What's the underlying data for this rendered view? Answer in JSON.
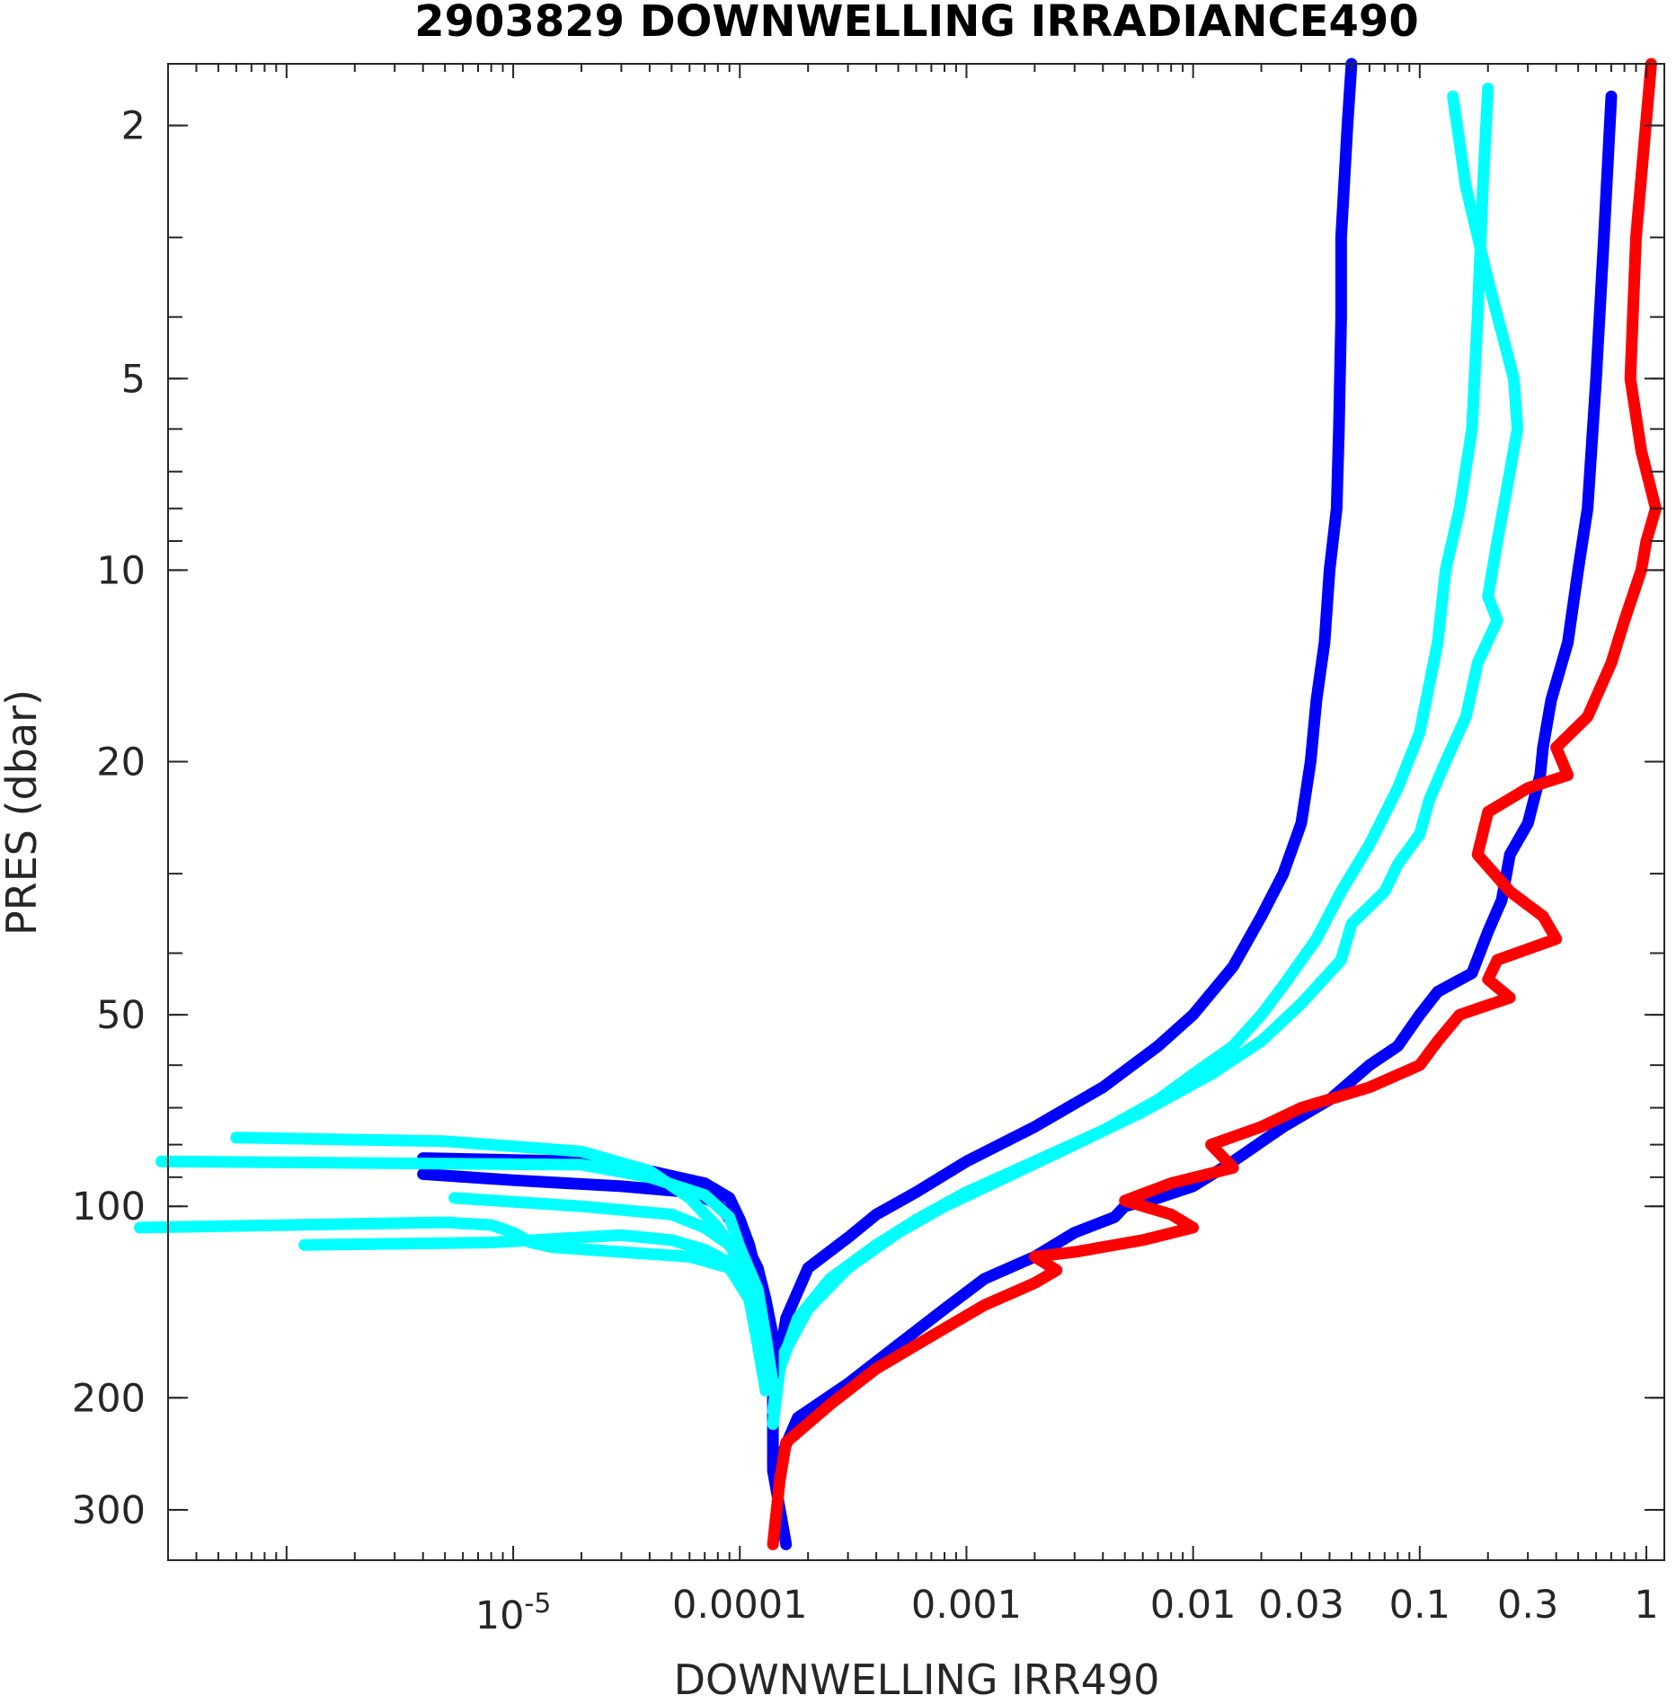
{
  "chart_data": {
    "type": "line",
    "title": "2903829  DOWNWELLING IRRADIANCE490",
    "xlabel": "DOWNWELLING IRR490",
    "ylabel": "PRES (dbar)",
    "xscale": "log",
    "yscale": "log",
    "yreversed": true,
    "xlim": [
      3e-07,
      1.2
    ],
    "ylim": [
      1.6,
      360
    ],
    "grid": false,
    "legend": "none",
    "xticks": [
      {
        "value": 1e-05,
        "label": "10",
        "sup": "-5"
      },
      {
        "value": 0.0001,
        "label": "0.0001"
      },
      {
        "value": 0.001,
        "label": "0.001"
      },
      {
        "value": 0.01,
        "label": "0.01"
      },
      {
        "value": 0.03,
        "label": "0.03"
      },
      {
        "value": 0.1,
        "label": "0.1"
      },
      {
        "value": 0.3,
        "label": "0.3"
      },
      {
        "value": 1,
        "label": "1"
      }
    ],
    "yticks": [
      {
        "value": 2,
        "label": "2"
      },
      {
        "value": 5,
        "label": "5"
      },
      {
        "value": 10,
        "label": "10"
      },
      {
        "value": 20,
        "label": "20"
      },
      {
        "value": 50,
        "label": "50"
      },
      {
        "value": 100,
        "label": "100"
      },
      {
        "value": 200,
        "label": "200"
      },
      {
        "value": 300,
        "label": "300"
      }
    ],
    "series": [
      {
        "color": "#0000ff",
        "points": [
          [
            0.05,
            1.6
          ],
          [
            0.048,
            2
          ],
          [
            0.045,
            3
          ],
          [
            0.045,
            4
          ],
          [
            0.044,
            6
          ],
          [
            0.043,
            8
          ],
          [
            0.04,
            10
          ],
          [
            0.038,
            13
          ],
          [
            0.035,
            16
          ],
          [
            0.033,
            20
          ],
          [
            0.03,
            25
          ],
          [
            0.025,
            30
          ],
          [
            0.02,
            35
          ],
          [
            0.015,
            42
          ],
          [
            0.01,
            50
          ],
          [
            0.007,
            56
          ],
          [
            0.004,
            65
          ],
          [
            0.002,
            75
          ],
          [
            0.001,
            85
          ],
          [
            0.0006,
            95
          ],
          [
            0.0004,
            103
          ],
          [
            0.0003,
            112
          ],
          [
            0.0002,
            125
          ],
          [
            0.00016,
            150
          ],
          [
            0.00014,
            200
          ],
          [
            0.00014,
            260
          ],
          [
            0.00016,
            340
          ]
        ]
      },
      {
        "color": "#0000ff",
        "points": [
          [
            0.7,
            1.8
          ],
          [
            0.65,
            3
          ],
          [
            0.6,
            5
          ],
          [
            0.55,
            8
          ],
          [
            0.5,
            10
          ],
          [
            0.45,
            13
          ],
          [
            0.38,
            16
          ],
          [
            0.35,
            19
          ],
          [
            0.34,
            21
          ],
          [
            0.3,
            25
          ],
          [
            0.25,
            28
          ],
          [
            0.23,
            33
          ],
          [
            0.2,
            37
          ],
          [
            0.17,
            43
          ],
          [
            0.12,
            46
          ],
          [
            0.1,
            50
          ],
          [
            0.08,
            56
          ],
          [
            0.06,
            60
          ],
          [
            0.04,
            68
          ],
          [
            0.025,
            75
          ],
          [
            0.015,
            85
          ],
          [
            0.01,
            93
          ],
          [
            0.007,
            97
          ],
          [
            0.005,
            100
          ],
          [
            0.0045,
            104
          ],
          [
            0.003,
            110
          ],
          [
            0.002,
            120
          ],
          [
            0.0012,
            130
          ],
          [
            0.0008,
            145
          ],
          [
            0.0005,
            165
          ],
          [
            0.0003,
            190
          ],
          [
            0.00018,
            215
          ],
          [
            0.00015,
            250
          ]
        ]
      },
      {
        "color": "#00ffff",
        "points": [
          [
            0.2,
            1.75
          ],
          [
            0.19,
            2.5
          ],
          [
            0.18,
            4
          ],
          [
            0.17,
            6
          ],
          [
            0.15,
            8
          ],
          [
            0.13,
            10
          ],
          [
            0.12,
            13
          ],
          [
            0.1,
            18
          ],
          [
            0.08,
            22
          ],
          [
            0.06,
            27
          ],
          [
            0.045,
            32
          ],
          [
            0.035,
            38
          ],
          [
            0.025,
            45
          ],
          [
            0.02,
            50
          ],
          [
            0.015,
            56
          ],
          [
            0.01,
            62
          ],
          [
            0.007,
            68
          ],
          [
            0.004,
            76
          ],
          [
            0.002,
            85
          ],
          [
            0.001,
            95
          ],
          [
            0.0006,
            105
          ],
          [
            0.0004,
            115
          ],
          [
            0.00025,
            130
          ],
          [
            0.00018,
            150
          ],
          [
            0.00015,
            180
          ],
          [
            0.00014,
            220
          ]
        ]
      },
      {
        "color": "#00ffff",
        "points": [
          [
            0.14,
            1.8
          ],
          [
            0.16,
            2.5
          ],
          [
            0.2,
            3.5
          ],
          [
            0.26,
            5
          ],
          [
            0.27,
            6
          ],
          [
            0.25,
            7
          ],
          [
            0.22,
            9
          ],
          [
            0.2,
            11
          ],
          [
            0.22,
            12
          ],
          [
            0.18,
            14
          ],
          [
            0.16,
            17
          ],
          [
            0.13,
            20
          ],
          [
            0.11,
            23
          ],
          [
            0.1,
            26
          ],
          [
            0.08,
            29
          ],
          [
            0.07,
            32
          ],
          [
            0.05,
            36
          ],
          [
            0.045,
            41
          ],
          [
            0.03,
            48
          ],
          [
            0.02,
            55
          ],
          [
            0.012,
            62
          ],
          [
            0.006,
            71
          ],
          [
            0.003,
            80
          ],
          [
            0.0015,
            90
          ],
          [
            0.0008,
            100
          ],
          [
            0.0005,
            110
          ],
          [
            0.0003,
            125
          ],
          [
            0.0002,
            145
          ],
          [
            0.00015,
            175
          ],
          [
            0.00014,
            210
          ]
        ]
      },
      {
        "color": "#ff0000",
        "points": [
          [
            1.05,
            1.6
          ],
          [
            0.9,
            3
          ],
          [
            0.85,
            5
          ],
          [
            0.95,
            6.5
          ],
          [
            1.1,
            8
          ],
          [
            1.0,
            9
          ],
          [
            0.95,
            10
          ],
          [
            0.8,
            12
          ],
          [
            0.7,
            14
          ],
          [
            0.55,
            17
          ],
          [
            0.4,
            19
          ],
          [
            0.45,
            21
          ],
          [
            0.3,
            22
          ],
          [
            0.2,
            24
          ],
          [
            0.18,
            28
          ],
          [
            0.25,
            32
          ],
          [
            0.35,
            35
          ],
          [
            0.4,
            38
          ],
          [
            0.22,
            41
          ],
          [
            0.2,
            44
          ],
          [
            0.25,
            47
          ],
          [
            0.15,
            50
          ],
          [
            0.12,
            55
          ],
          [
            0.1,
            60
          ],
          [
            0.06,
            65
          ],
          [
            0.03,
            70
          ],
          [
            0.02,
            75
          ],
          [
            0.012,
            80
          ],
          [
            0.015,
            87
          ],
          [
            0.008,
            92
          ],
          [
            0.005,
            98
          ],
          [
            0.008,
            103
          ],
          [
            0.01,
            108
          ],
          [
            0.006,
            113
          ],
          [
            0.003,
            118
          ],
          [
            0.002,
            120
          ],
          [
            0.0025,
            126
          ],
          [
            0.002,
            132
          ],
          [
            0.0012,
            143
          ],
          [
            0.0007,
            160
          ],
          [
            0.0004,
            180
          ],
          [
            0.00025,
            205
          ],
          [
            0.00016,
            235
          ],
          [
            0.00015,
            270
          ],
          [
            0.00014,
            340
          ]
        ]
      },
      {
        "color": "#0000ff",
        "points": [
          [
            4e-06,
            84
          ],
          [
            2e-05,
            85
          ],
          [
            4e-05,
            88
          ],
          [
            7e-05,
            92
          ],
          [
            9e-05,
            97
          ],
          [
            0.0001,
            105
          ],
          [
            0.00011,
            115
          ],
          [
            0.00012,
            130
          ],
          [
            0.00013,
            145
          ],
          [
            0.00014,
            165
          ],
          [
            0.00014,
            185
          ]
        ]
      },
      {
        "color": "#0000ff",
        "points": [
          [
            4e-06,
            89
          ],
          [
            1e-05,
            91
          ],
          [
            3e-05,
            93
          ],
          [
            6e-05,
            95
          ],
          [
            8e-05,
            99
          ],
          [
            0.0001,
            110
          ],
          [
            0.00012,
            125
          ],
          [
            0.00013,
            140
          ],
          [
            0.00014,
            160
          ]
        ]
      },
      {
        "color": "#00ffff",
        "points": [
          [
            2.8e-07,
            85
          ],
          [
            2e-05,
            86
          ],
          [
            4e-05,
            90
          ],
          [
            7e-05,
            96
          ],
          [
            9e-05,
            104
          ],
          [
            0.0001,
            116
          ],
          [
            0.00012,
            135
          ],
          [
            0.00013,
            160
          ],
          [
            0.00014,
            190
          ]
        ]
      },
      {
        "color": "#00ffff",
        "points": [
          [
            6e-07,
            78
          ],
          [
            5e-06,
            79
          ],
          [
            2e-05,
            82
          ],
          [
            4e-05,
            88
          ],
          [
            6e-05,
            97
          ],
          [
            8e-05,
            108
          ],
          [
            0.0001,
            122
          ],
          [
            0.00012,
            145
          ],
          [
            0.00013,
            170
          ]
        ]
      },
      {
        "color": "#00ffff",
        "points": [
          [
            2.25e-07,
            108
          ],
          [
            5e-06,
            106
          ],
          [
            8e-06,
            107
          ],
          [
            1e-05,
            110
          ],
          [
            1.2e-05,
            114
          ],
          [
            1.5e-05,
            116
          ],
          [
            3e-05,
            118
          ],
          [
            6e-05,
            120
          ],
          [
            9e-05,
            125
          ],
          [
            0.00011,
            140
          ],
          [
            0.00012,
            165
          ],
          [
            0.00013,
            195
          ]
        ]
      },
      {
        "color": "#00ffff",
        "points": [
          [
            1.2e-06,
            115
          ],
          [
            8e-06,
            114
          ],
          [
            3e-05,
            111
          ],
          [
            5e-05,
            113
          ],
          [
            7e-05,
            117
          ],
          [
            0.0001,
            125
          ],
          [
            0.00011,
            140
          ],
          [
            0.00012,
            155
          ]
        ]
      },
      {
        "color": "#00ffff",
        "points": [
          [
            5.5e-06,
            97
          ],
          [
            2e-05,
            100
          ],
          [
            5e-05,
            103
          ],
          [
            7e-05,
            108
          ],
          [
            9e-05,
            115
          ],
          [
            0.00011,
            130
          ],
          [
            0.00012,
            150
          ]
        ]
      }
    ]
  }
}
